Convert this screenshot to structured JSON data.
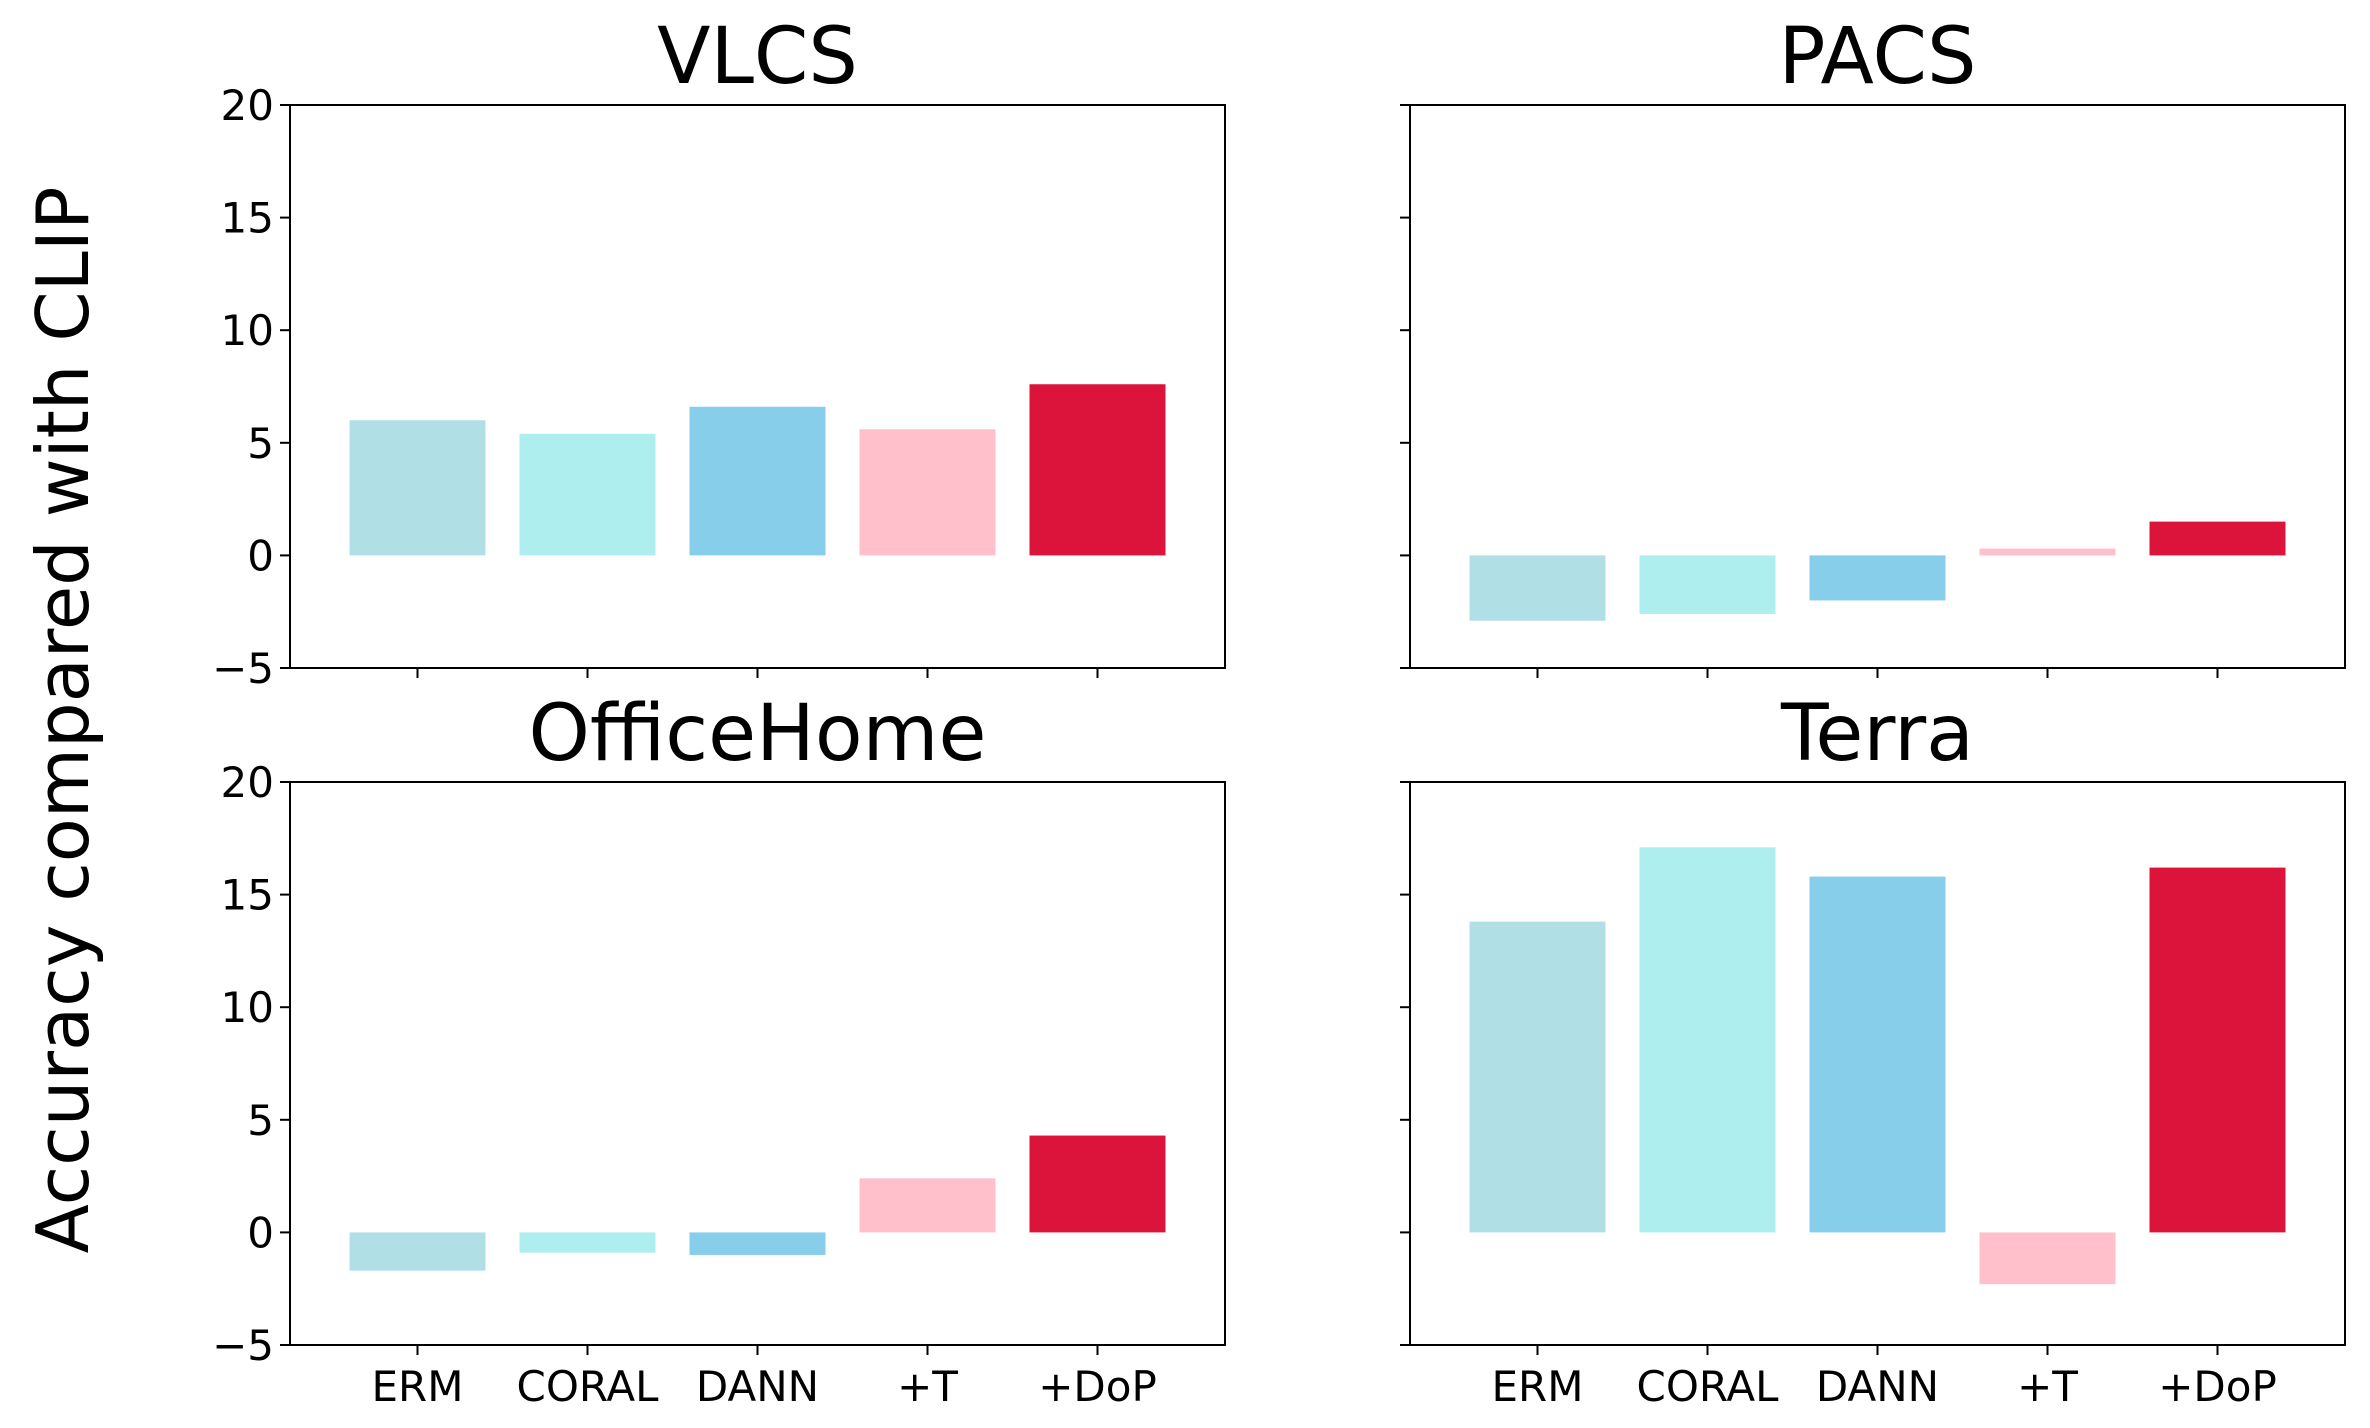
{
  "chart_data": {
    "type": "bar",
    "ylabel": "Accuracy compared with CLIP",
    "categories": [
      "ERM",
      "CORAL",
      "DANN",
      "+T",
      "+DoP"
    ],
    "colors": [
      "#b0e0e6",
      "#afeeee",
      "#87ceeb",
      "#ffc0cb",
      "#dc143c"
    ],
    "ylim": [
      -5,
      20
    ],
    "yticks": [
      -5,
      0,
      5,
      10,
      15,
      20
    ],
    "ytick_labels": [
      "−5",
      "0",
      "5",
      "10",
      "15",
      "20"
    ],
    "panels": [
      {
        "title": "VLCS",
        "values": [
          6.0,
          5.4,
          6.6,
          5.6,
          7.6
        ]
      },
      {
        "title": "PACS",
        "values": [
          -2.9,
          -2.6,
          -2.0,
          0.3,
          1.5
        ]
      },
      {
        "title": "OfficeHome",
        "values": [
          -1.7,
          -0.9,
          -1.0,
          2.4,
          4.3
        ]
      },
      {
        "title": "Terra",
        "values": [
          13.8,
          17.1,
          15.8,
          -2.3,
          16.2
        ]
      }
    ]
  }
}
